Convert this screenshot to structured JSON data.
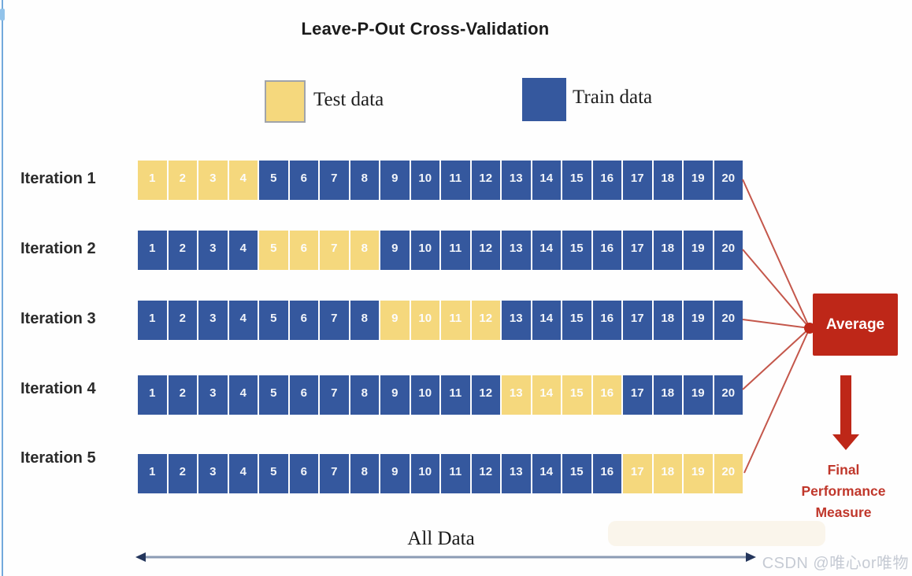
{
  "title": "Leave-P-Out Cross-Validation",
  "legend": {
    "test": {
      "label": "Test data"
    },
    "train": {
      "label": "Train data"
    }
  },
  "diagram": {
    "n_items": 20,
    "items": [
      1,
      2,
      3,
      4,
      5,
      6,
      7,
      8,
      9,
      10,
      11,
      12,
      13,
      14,
      15,
      16,
      17,
      18,
      19,
      20
    ],
    "iterations": [
      {
        "label": "Iteration 1",
        "test_start": 1,
        "test_end": 4
      },
      {
        "label": "Iteration 2",
        "test_start": 5,
        "test_end": 8
      },
      {
        "label": "Iteration 3",
        "test_start": 9,
        "test_end": 12
      },
      {
        "label": "Iteration 4",
        "test_start": 13,
        "test_end": 16
      },
      {
        "label": "Iteration 5",
        "test_start": 17,
        "test_end": 20
      }
    ],
    "average_label": "Average",
    "final_measure_lines": [
      "Final",
      "Performance",
      "Measure"
    ],
    "all_data_label": "All Data"
  },
  "colors": {
    "test_fill": "#F5D87D",
    "train_fill": "#35589E",
    "accent_red": "#BE2718",
    "connector_red": "#C4574B",
    "all_data_line": "#8B9BB4",
    "all_data_arrowhead": "#24365C",
    "title_text": "#1B1B1B",
    "iteration_label_text": "#2B2B2B",
    "final_text": "#C0372B",
    "watermark_text": "#C6CBD4",
    "left_edge_line": "#5B9AD6"
  },
  "watermark": "CSDN @唯心or唯物"
}
